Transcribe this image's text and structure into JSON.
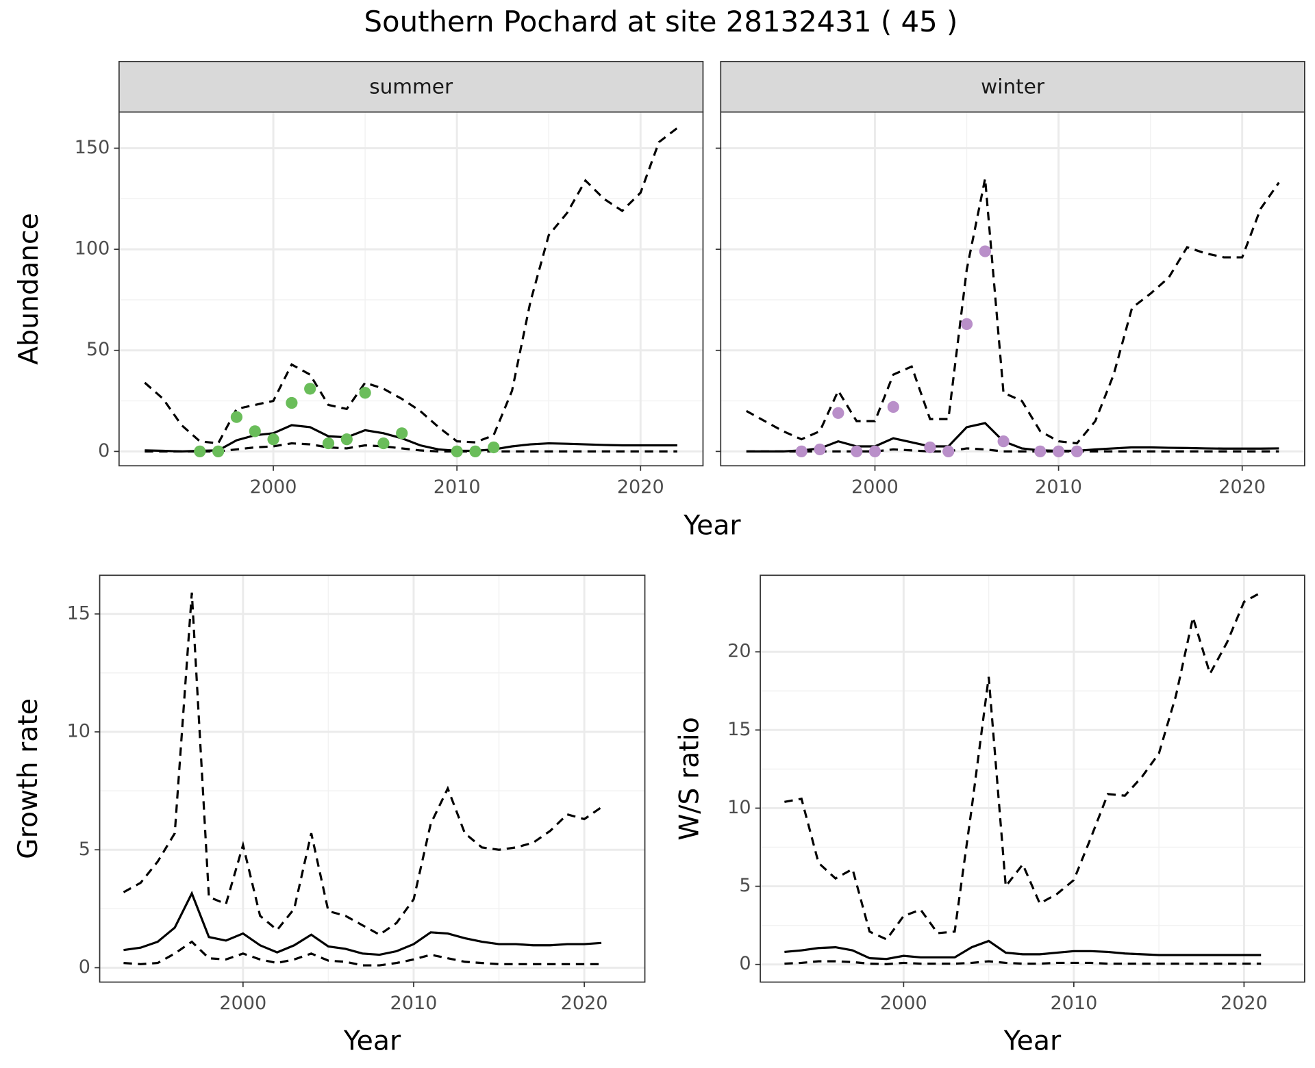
{
  "title": "Southern Pochard at site 28132431 ( 45 )",
  "shared_xlabel": "Year",
  "chart_data": [
    {
      "type": "line",
      "strip": "summer",
      "ylabel": "Abundance",
      "xlim": [
        1991.6,
        2023.4
      ],
      "xticks": [
        2000,
        2010,
        2020
      ],
      "ylim": [
        -7.1,
        167.9
      ],
      "yticks": [
        0,
        50,
        100,
        150
      ],
      "ytick_labels": true,
      "grid": true,
      "x": [
        1993,
        1994,
        1995,
        1996,
        1997,
        1998,
        1999,
        2000,
        2001,
        2002,
        2003,
        2004,
        2005,
        2006,
        2007,
        2008,
        2009,
        2010,
        2011,
        2012,
        2013,
        2014,
        2015,
        2016,
        2017,
        2018,
        2019,
        2020,
        2021,
        2022
      ],
      "series": [
        {
          "color": "#000000",
          "dashed": false,
          "values": [
            0.5,
            0.3,
            0,
            0.3,
            0.5,
            5.5,
            8,
            9,
            13,
            12,
            7.5,
            7,
            10.5,
            9,
            6.5,
            3,
            1,
            0.3,
            0.3,
            1,
            2.5,
            3.5,
            4,
            3.8,
            3.5,
            3.2,
            3,
            3,
            3,
            3
          ]
        },
        {
          "color": "#000000",
          "dashed": true,
          "values": [
            34,
            26,
            13,
            5,
            4,
            21,
            23,
            25,
            43,
            38,
            23,
            21,
            34,
            31,
            26,
            20,
            12,
            5,
            4.5,
            8,
            30,
            74,
            107,
            118,
            134,
            125,
            119,
            128,
            153,
            160
          ]
        },
        {
          "color": "#000000",
          "dashed": true,
          "values": [
            0,
            0,
            0,
            0,
            0,
            1,
            2,
            2.5,
            4,
            3.5,
            2,
            1.5,
            3,
            2.5,
            1.5,
            0.5,
            0,
            0,
            0,
            0,
            0,
            0,
            0,
            0,
            0,
            0,
            0,
            0,
            0,
            0
          ]
        }
      ],
      "points": {
        "color": "#6abd5a",
        "x": [
          1996,
          1997,
          1998,
          1999,
          2000,
          2001,
          2002,
          2003,
          2004,
          2005,
          2006,
          2007,
          2010,
          2011,
          2012
        ],
        "values": [
          0,
          0,
          17,
          10,
          6,
          24,
          31,
          4,
          6,
          29,
          4,
          9,
          0,
          0,
          2
        ]
      }
    },
    {
      "type": "line",
      "strip": "winter",
      "xlim": [
        1991.6,
        2023.4
      ],
      "xticks": [
        2000,
        2010,
        2020
      ],
      "ylim": [
        -7.1,
        167.9
      ],
      "yticks": [
        0,
        50,
        100,
        150
      ],
      "ytick_labels": false,
      "grid": true,
      "x": [
        1993,
        1994,
        1995,
        1996,
        1997,
        1998,
        1999,
        2000,
        2001,
        2002,
        2003,
        2004,
        2005,
        2006,
        2007,
        2008,
        2009,
        2010,
        2011,
        2012,
        2013,
        2014,
        2015,
        2016,
        2017,
        2018,
        2019,
        2020,
        2021,
        2022
      ],
      "series": [
        {
          "color": "#000000",
          "dashed": false,
          "values": [
            0,
            0,
            0,
            0.5,
            1.5,
            5,
            2.5,
            2.5,
            6.5,
            4.5,
            2.5,
            2.5,
            12,
            14,
            5,
            1.5,
            0.5,
            0.3,
            0.3,
            1,
            1.5,
            2,
            2,
            1.8,
            1.7,
            1.5,
            1.4,
            1.4,
            1.4,
            1.5
          ]
        },
        {
          "color": "#000000",
          "dashed": true,
          "values": [
            20,
            15,
            10,
            6,
            10,
            30,
            15,
            15,
            38,
            42,
            16,
            16,
            90,
            135,
            29,
            25,
            10,
            5,
            4,
            15,
            38,
            71,
            78,
            86,
            101,
            98,
            96,
            96,
            120,
            133
          ]
        },
        {
          "color": "#000000",
          "dashed": true,
          "values": [
            0,
            0,
            0,
            0,
            0,
            0,
            0,
            0,
            1,
            0.5,
            0,
            0,
            1.5,
            1,
            0,
            0,
            0,
            0,
            0,
            0,
            0,
            0,
            0,
            0,
            0,
            0,
            0,
            0,
            0,
            0
          ]
        }
      ],
      "points": {
        "color": "#b98fc9",
        "x": [
          1996,
          1997,
          1998,
          1999,
          2000,
          2001,
          2003,
          2004,
          2005,
          2006,
          2007,
          2009,
          2010,
          2011
        ],
        "values": [
          0,
          1,
          19,
          0,
          0,
          22,
          2,
          0,
          63,
          99,
          5,
          0,
          0,
          0
        ]
      }
    },
    {
      "type": "line",
      "ylabel": "Growth rate",
      "xlabel": "Year",
      "xlim": [
        1991.6,
        2023.55
      ],
      "xticks": [
        2000,
        2010,
        2020
      ],
      "ylim": [
        -0.61,
        16.64
      ],
      "yticks": [
        0,
        5,
        10,
        15
      ],
      "ytick_labels": true,
      "grid": true,
      "x": [
        1993,
        1994,
        1995,
        1996,
        1997,
        1998,
        1999,
        2000,
        2001,
        2002,
        2003,
        2004,
        2005,
        2006,
        2007,
        2008,
        2009,
        2010,
        2011,
        2012,
        2013,
        2014,
        2015,
        2016,
        2017,
        2018,
        2019,
        2020,
        2021
      ],
      "series": [
        {
          "color": "#000000",
          "dashed": false,
          "values": [
            0.75,
            0.85,
            1.1,
            1.7,
            3.15,
            1.3,
            1.15,
            1.45,
            0.95,
            0.65,
            0.95,
            1.4,
            0.9,
            0.8,
            0.6,
            0.55,
            0.7,
            1.0,
            1.5,
            1.45,
            1.25,
            1.1,
            1.0,
            1.0,
            0.95,
            0.95,
            1.0,
            1.0,
            1.05
          ]
        },
        {
          "color": "#000000",
          "dashed": true,
          "values": [
            3.2,
            3.6,
            4.5,
            5.7,
            15.9,
            3.0,
            2.7,
            5.2,
            2.2,
            1.6,
            2.5,
            5.7,
            2.4,
            2.2,
            1.8,
            1.4,
            1.9,
            2.9,
            6.1,
            7.6,
            5.7,
            5.1,
            5.0,
            5.1,
            5.3,
            5.8,
            6.5,
            6.3,
            6.8
          ]
        },
        {
          "color": "#000000",
          "dashed": true,
          "values": [
            0.2,
            0.15,
            0.2,
            0.6,
            1.1,
            0.4,
            0.35,
            0.6,
            0.35,
            0.2,
            0.35,
            0.6,
            0.3,
            0.25,
            0.1,
            0.1,
            0.2,
            0.35,
            0.55,
            0.4,
            0.25,
            0.2,
            0.15,
            0.15,
            0.15,
            0.15,
            0.15,
            0.15,
            0.15
          ]
        }
      ]
    },
    {
      "type": "line",
      "ylabel": "W/S ratio",
      "xlabel": "Year",
      "xlim": [
        1991.58,
        2023.56
      ],
      "xticks": [
        2000,
        2010,
        2020
      ],
      "ylim": [
        -1.13,
        24.9
      ],
      "yticks": [
        0,
        5,
        10,
        15,
        20
      ],
      "ytick_labels": true,
      "grid": true,
      "x": [
        1993,
        1994,
        1995,
        1996,
        1997,
        1998,
        1999,
        2000,
        2001,
        2002,
        2003,
        2004,
        2005,
        2006,
        2007,
        2008,
        2009,
        2010,
        2011,
        2012,
        2013,
        2014,
        2015,
        2016,
        2017,
        2018,
        2019,
        2020,
        2021
      ],
      "series": [
        {
          "color": "#000000",
          "dashed": false,
          "values": [
            0.8,
            0.9,
            1.05,
            1.1,
            0.9,
            0.4,
            0.35,
            0.55,
            0.45,
            0.45,
            0.45,
            1.1,
            1.5,
            0.75,
            0.65,
            0.65,
            0.75,
            0.85,
            0.85,
            0.8,
            0.7,
            0.65,
            0.6,
            0.6,
            0.6,
            0.6,
            0.6,
            0.6,
            0.6
          ]
        },
        {
          "color": "#000000",
          "dashed": true,
          "values": [
            10.4,
            10.6,
            6.5,
            5.5,
            6.1,
            2.1,
            1.6,
            3.1,
            3.5,
            2.0,
            2.1,
            10,
            18.4,
            5.0,
            6.4,
            3.9,
            4.5,
            5.4,
            8.1,
            10.9,
            10.8,
            12.0,
            13.5,
            17.2,
            22.2,
            18.6,
            20.6,
            23.2,
            23.8
          ]
        },
        {
          "color": "#000000",
          "dashed": true,
          "values": [
            0.05,
            0.1,
            0.2,
            0.2,
            0.15,
            0.05,
            0.02,
            0.1,
            0.05,
            0.05,
            0.05,
            0.1,
            0.2,
            0.1,
            0.05,
            0.05,
            0.1,
            0.1,
            0.1,
            0.05,
            0.05,
            0.05,
            0.05,
            0.05,
            0.05,
            0.05,
            0.05,
            0.05,
            0.05
          ]
        }
      ]
    }
  ]
}
